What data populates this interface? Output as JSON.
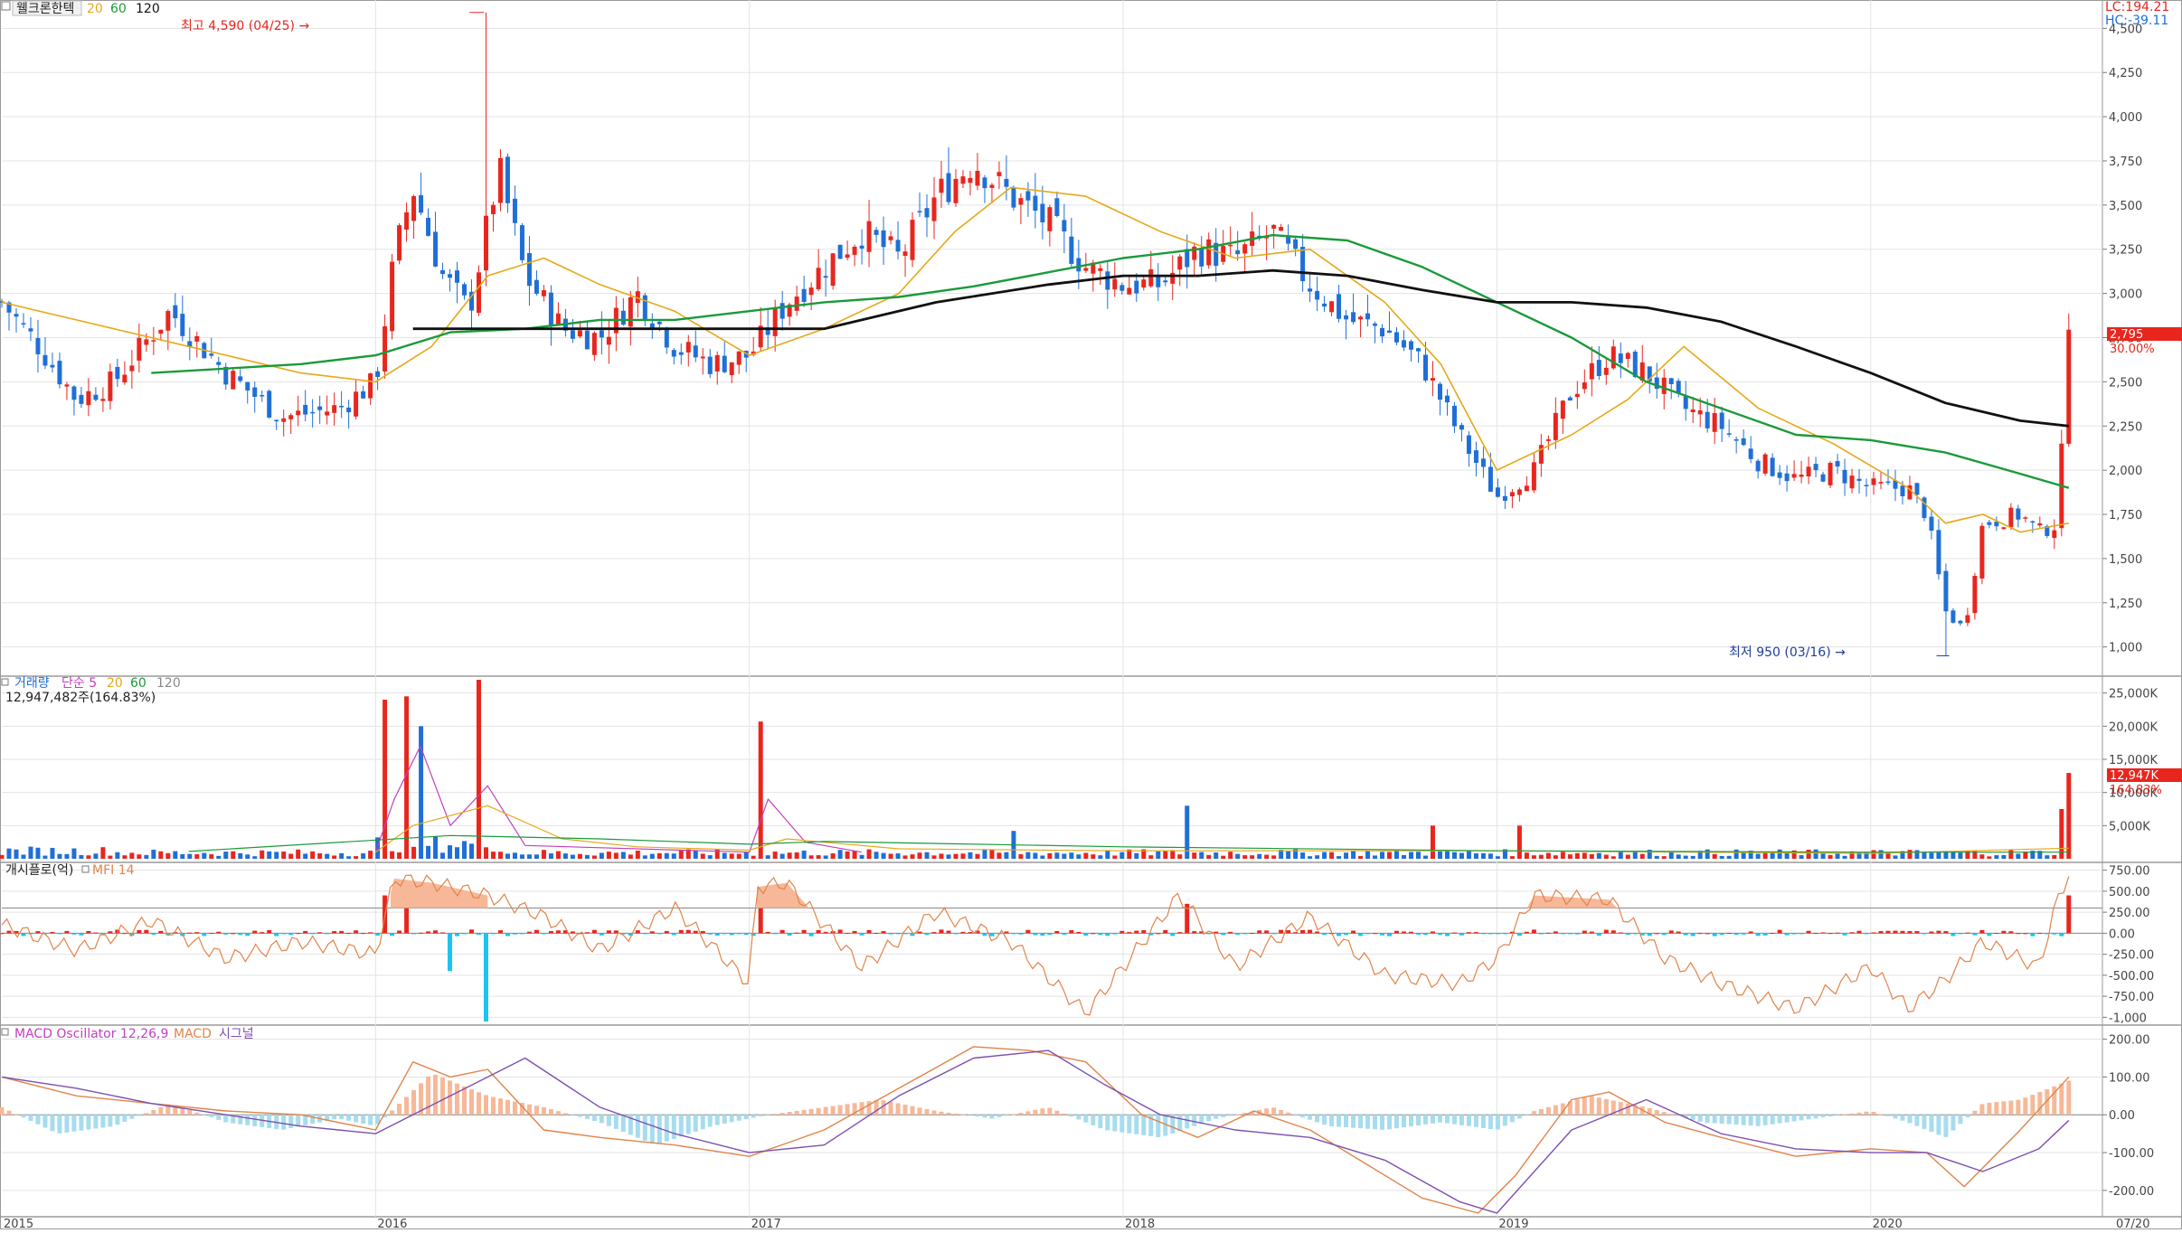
{
  "main_pane": {
    "stock_name": "웰크론한텍",
    "ma_labels": [
      {
        "label": "20",
        "color": "#e6a817"
      },
      {
        "label": "60",
        "color": "#1a9a3a"
      },
      {
        "label": "120",
        "color": "#111111"
      }
    ],
    "lc_text": "LC:194.21",
    "hc_text": "HC:-39.11",
    "high_annotation": "최고 4,590 (04/25) →",
    "low_annotation": "최저 950 (03/16) →",
    "price_badge": "2,795",
    "price_change": "30.00%",
    "y_ticks": [
      "4,500",
      "4,250",
      "4,000",
      "3,750",
      "3,500",
      "3,250",
      "3,000",
      "2,750",
      "2,500",
      "2,250",
      "2,000",
      "1,750",
      "1,500",
      "1,250",
      "1,000"
    ]
  },
  "volume_pane": {
    "title": "거래량",
    "ma_labels": [
      {
        "label": "단순 5",
        "color": "#c040c0"
      },
      {
        "label": "20",
        "color": "#e6a817"
      },
      {
        "label": "60",
        "color": "#1a9a3a"
      },
      {
        "label": "120",
        "color": "#888888"
      }
    ],
    "value_text": "12,947,482주(164.83%)",
    "badge": "12,947K",
    "badge_pct": "164.83%",
    "y_ticks": [
      "25,000K",
      "20,000K",
      "15,000K",
      "10,000K",
      "5,000K"
    ]
  },
  "mfi_pane": {
    "title": "개시플로(억)",
    "indicator": "MFI 14",
    "y_ticks": [
      "750.00",
      "500.00",
      "250.00",
      "0.00",
      "-250.00",
      "-500.00",
      "-750.00",
      "-1,000"
    ]
  },
  "macd_pane": {
    "indicator": "MACD Oscillator 12,26,9",
    "macd_label": "MACD",
    "signal_label": "시그널",
    "y_ticks": [
      "200.00",
      "100.00",
      "0.00",
      "-100.00",
      "-200.00"
    ]
  },
  "x_axis": {
    "labels": [
      "2015",
      "2016",
      "2017",
      "2018",
      "2019",
      "2020",
      "07/20"
    ]
  },
  "colors": {
    "up": "#e8261e",
    "down": "#1f6fd6",
    "ma20": "#e6a817",
    "ma60": "#1a9a3a",
    "ma120": "#111111",
    "mfi_line": "#e0844a",
    "mfi_fill": "#f6b898",
    "osc_pos": "#f6b898",
    "osc_neg": "#a6dcef",
    "macd_line": "#e0844a",
    "signal_line": "#7c4fb0",
    "flow_pos": "#e8261e",
    "flow_neg": "#1cc3f0",
    "grid": "#e3e3e3",
    "border": "#9a9a9a"
  },
  "chart_data": [
    {
      "type": "candlestick",
      "title": "웰크론한텍",
      "interval": "weekly",
      "x_range": [
        "2015",
        "2020-07"
      ],
      "ylim": [
        850,
        4650
      ],
      "high": {
        "value": 4590,
        "date": "04/25"
      },
      "low": {
        "value": 950,
        "date": "03/16"
      },
      "last": {
        "close": 2795,
        "change_pct": 30.0
      },
      "close_path": {
        "x": [
          2015.0,
          2015.1,
          2015.2,
          2015.3,
          2015.45,
          2015.6,
          2015.75,
          2015.9,
          2016.0,
          2016.05,
          2016.1,
          2016.18,
          2016.25,
          2016.33,
          2016.4,
          2016.5,
          2016.6,
          2016.7,
          2016.8,
          2016.9,
          2017.0,
          2017.1,
          2017.2,
          2017.3,
          2017.4,
          2017.5,
          2017.6,
          2017.7,
          2017.8,
          2017.9,
          2018.0,
          2018.1,
          2018.2,
          2018.3,
          2018.4,
          2018.5,
          2018.6,
          2018.7,
          2018.8,
          2018.9,
          2019.0,
          2019.1,
          2019.2,
          2019.3,
          2019.4,
          2019.5,
          2019.6,
          2019.7,
          2019.8,
          2019.9,
          2020.0,
          2020.1,
          2020.15,
          2020.2,
          2020.25,
          2020.3,
          2020.4,
          2020.45,
          2020.5,
          2020.53
        ],
        "y": [
          2950,
          2700,
          2400,
          2500,
          2900,
          2550,
          2300,
          2350,
          2500,
          3200,
          3600,
          3100,
          2900,
          3700,
          3100,
          2800,
          2750,
          3000,
          2700,
          2600,
          2650,
          2950,
          3150,
          3350,
          3200,
          3550,
          3750,
          3550,
          3400,
          3150,
          3050,
          3050,
          3250,
          3200,
          3350,
          3050,
          2850,
          2800,
          2600,
          2200,
          1850,
          2000,
          2450,
          2650,
          2550,
          2350,
          2250,
          2050,
          1950,
          2000,
          1900,
          1900,
          1750,
          1200,
          1100,
          1700,
          1750,
          1650,
          1700,
          2795
        ]
      },
      "ma20": {
        "x": [
          2015.0,
          2015.5,
          2015.8,
          2016.0,
          2016.15,
          2016.3,
          2016.45,
          2016.6,
          2016.8,
          2017.0,
          2017.2,
          2017.4,
          2017.55,
          2017.7,
          2017.9,
          2018.1,
          2018.3,
          2018.5,
          2018.7,
          2018.85,
          2019.0,
          2019.2,
          2019.35,
          2019.5,
          2019.7,
          2019.9,
          2020.1,
          2020.2,
          2020.3,
          2020.4,
          2020.53
        ],
        "y": [
          2950,
          2700,
          2550,
          2500,
          2700,
          3100,
          3200,
          3050,
          2900,
          2650,
          2800,
          3000,
          3350,
          3600,
          3550,
          3350,
          3200,
          3250,
          2950,
          2600,
          2000,
          2200,
          2400,
          2700,
          2350,
          2150,
          1900,
          1700,
          1750,
          1650,
          1700
        ]
      },
      "ma60": {
        "x": [
          2015.4,
          2015.8,
          2016.0,
          2016.2,
          2016.4,
          2016.6,
          2016.8,
          2017.0,
          2017.2,
          2017.4,
          2017.6,
          2017.8,
          2018.0,
          2018.2,
          2018.4,
          2018.6,
          2018.8,
          2019.0,
          2019.2,
          2019.4,
          2019.6,
          2019.8,
          2020.0,
          2020.2,
          2020.4,
          2020.53
        ],
        "y": [
          2550,
          2600,
          2650,
          2780,
          2800,
          2850,
          2850,
          2900,
          2950,
          2980,
          3040,
          3120,
          3200,
          3250,
          3330,
          3300,
          3150,
          2950,
          2750,
          2500,
          2350,
          2200,
          2170,
          2100,
          1980,
          1900
        ]
      },
      "ma120": {
        "x": [
          2016.1,
          2016.5,
          2017.0,
          2017.2,
          2017.5,
          2017.8,
          2018.0,
          2018.2,
          2018.4,
          2018.6,
          2018.8,
          2019.0,
          2019.2,
          2019.4,
          2019.6,
          2019.8,
          2020.0,
          2020.2,
          2020.4,
          2020.53
        ],
        "y": [
          2800,
          2800,
          2800,
          2800,
          2950,
          3050,
          3100,
          3100,
          3130,
          3100,
          3020,
          2950,
          2950,
          2920,
          2840,
          2700,
          2550,
          2380,
          2280,
          2250
        ]
      }
    },
    {
      "type": "bar",
      "title": "거래량",
      "unit": "K",
      "ylim": [
        0,
        27000
      ],
      "last": {
        "value": 12947,
        "pct": 164.83
      },
      "spikes": [
        {
          "x": 2016.03,
          "value": 24000
        },
        {
          "x": 2016.08,
          "value": 24500
        },
        {
          "x": 2016.12,
          "value": 20000
        },
        {
          "x": 2016.28,
          "value": 27000
        },
        {
          "x": 2017.03,
          "value": 20700
        },
        {
          "x": 2017.7,
          "value": 4200
        },
        {
          "x": 2018.18,
          "value": 8000
        },
        {
          "x": 2018.82,
          "value": 5000
        },
        {
          "x": 2019.07,
          "value": 5000
        },
        {
          "x": 2020.52,
          "value": 7500
        },
        {
          "x": 2020.53,
          "value": 12947
        }
      ],
      "baseline_value": 900
    },
    {
      "type": "bar+line",
      "title": "개시플로(억)",
      "indicator": "MFI 14",
      "ylim": [
        -1050,
        800
      ],
      "flow_spikes": [
        {
          "x": 2016.03,
          "value": 450
        },
        {
          "x": 2016.08,
          "value": 600
        },
        {
          "x": 2016.2,
          "value": -450
        },
        {
          "x": 2016.3,
          "value": -1050
        },
        {
          "x": 2017.03,
          "value": 450
        },
        {
          "x": 2018.18,
          "value": 350
        },
        {
          "x": 2020.53,
          "value": 450
        }
      ],
      "mfi": {
        "x": [
          2015.0,
          2015.2,
          2015.4,
          2015.6,
          2015.8,
          2016.0,
          2016.05,
          2016.15,
          2016.3,
          2016.45,
          2016.6,
          2016.8,
          2017.0,
          2017.02,
          2017.1,
          2017.3,
          2017.5,
          2017.7,
          2017.9,
          2018.0,
          2018.15,
          2018.3,
          2018.5,
          2018.7,
          2018.9,
          2019.0,
          2019.1,
          2019.3,
          2019.45,
          2019.6,
          2019.8,
          2020.0,
          2020.1,
          2020.2,
          2020.3,
          2020.45,
          2020.5,
          2020.53
        ],
        "y": [
          100,
          -200,
          150,
          -300,
          -100,
          -250,
          650,
          600,
          450,
          200,
          -200,
          300,
          -600,
          550,
          600,
          -400,
          250,
          -100,
          -950,
          -400,
          450,
          -400,
          200,
          -500,
          -600,
          -300,
          450,
          400,
          -300,
          -600,
          -900,
          -400,
          -900,
          -550,
          -100,
          -400,
          400,
          700
        ]
      }
    },
    {
      "type": "bar+line",
      "title": "MACD Oscillator 12,26,9",
      "ylim": [
        -260,
        230
      ],
      "oscillator": {
        "x": [
          2015.0,
          2015.15,
          2015.3,
          2015.45,
          2015.6,
          2015.75,
          2015.9,
          2016.0,
          2016.15,
          2016.3,
          2016.45,
          2016.6,
          2016.75,
          2016.9,
          2017.05,
          2017.2,
          2017.35,
          2017.5,
          2017.65,
          2017.8,
          2017.95,
          2018.1,
          2018.25,
          2018.4,
          2018.55,
          2018.7,
          2018.85,
          2019.0,
          2019.1,
          2019.25,
          2019.4,
          2019.55,
          2019.7,
          2019.85,
          2020.0,
          2020.1,
          2020.2,
          2020.3,
          2020.4,
          2020.53
        ],
        "y": [
          20,
          -50,
          -30,
          30,
          -20,
          -40,
          -10,
          -30,
          110,
          50,
          20,
          -20,
          -80,
          -30,
          0,
          20,
          40,
          10,
          -10,
          20,
          -40,
          -60,
          -10,
          20,
          -30,
          -40,
          -20,
          -40,
          10,
          50,
          20,
          -20,
          -30,
          -10,
          10,
          -20,
          -60,
          30,
          40,
          90
        ]
      },
      "macd": {
        "x": [
          2015.0,
          2015.2,
          2015.4,
          2015.6,
          2015.8,
          2016.0,
          2016.1,
          2016.2,
          2016.3,
          2016.45,
          2016.6,
          2016.8,
          2017.0,
          2017.2,
          2017.4,
          2017.6,
          2017.75,
          2017.9,
          2018.05,
          2018.2,
          2018.35,
          2018.5,
          2018.65,
          2018.8,
          2018.95,
          2019.05,
          2019.2,
          2019.3,
          2019.45,
          2019.6,
          2019.8,
          2020.0,
          2020.15,
          2020.25,
          2020.4,
          2020.53
        ],
        "y": [
          100,
          50,
          30,
          10,
          0,
          -40,
          140,
          100,
          120,
          -40,
          -60,
          -80,
          -110,
          -40,
          70,
          180,
          170,
          140,
          0,
          -60,
          10,
          -40,
          -130,
          -220,
          -260,
          -160,
          40,
          60,
          -20,
          -60,
          -110,
          -90,
          -100,
          -190,
          -40,
          100
        ]
      },
      "signal": {
        "x": [
          2015.0,
          2015.2,
          2015.4,
          2015.6,
          2015.8,
          2016.0,
          2016.2,
          2016.4,
          2016.6,
          2016.8,
          2017.0,
          2017.2,
          2017.4,
          2017.6,
          2017.8,
          2017.95,
          2018.1,
          2018.3,
          2018.5,
          2018.7,
          2018.9,
          2019.0,
          2019.2,
          2019.4,
          2019.6,
          2019.8,
          2020.0,
          2020.15,
          2020.3,
          2020.45,
          2020.53
        ],
        "y": [
          100,
          70,
          30,
          0,
          -30,
          -50,
          50,
          150,
          20,
          -50,
          -100,
          -80,
          50,
          150,
          170,
          80,
          0,
          -40,
          -60,
          -120,
          -230,
          -260,
          -40,
          40,
          -50,
          -90,
          -100,
          -100,
          -150,
          -90,
          -15
        ]
      }
    }
  ]
}
